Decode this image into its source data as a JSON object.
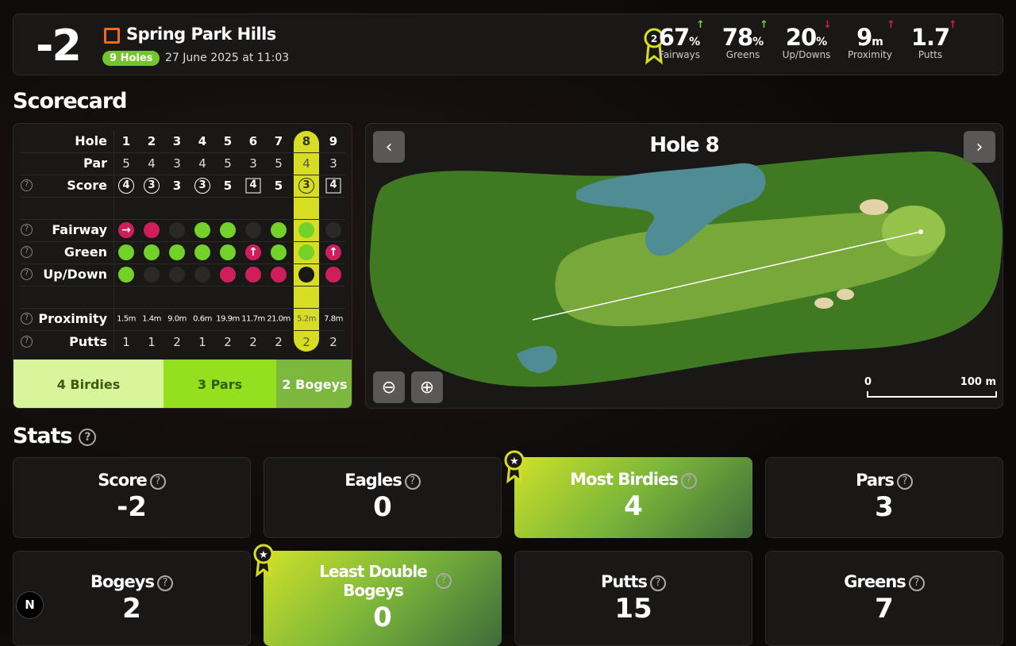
{
  "header": {
    "score": "-2",
    "course": "Spring Park Hills",
    "holes_badge": "9 Holes",
    "date": "27 June 2025 at 11:03",
    "medal_count": "2",
    "stats": [
      {
        "value": "67",
        "unit": "%",
        "label": "Fairways",
        "trend": "up"
      },
      {
        "value": "78",
        "unit": "%",
        "label": "Greens",
        "trend": "up"
      },
      {
        "value": "20",
        "unit": "%",
        "label": "Up/Downs",
        "trend": "down"
      },
      {
        "value": "9",
        "unit": "m",
        "label": "Proximity",
        "trend": "up-red"
      },
      {
        "value": "1.7",
        "unit": "",
        "label": "Putts",
        "trend": "up-red"
      }
    ]
  },
  "colors": {
    "green": "#74d12a",
    "red": "#cf1e5c",
    "none": "#2a2928",
    "highlight": "#d6dd22"
  },
  "scorecard": {
    "title": "Scorecard",
    "selected_hole": 8,
    "labels": {
      "hole": "Hole",
      "par": "Par",
      "score": "Score",
      "fairway": "Fairway",
      "green": "Green",
      "updown": "Up/Down",
      "proximity": "Proximity",
      "putts": "Putts"
    },
    "holes": [
      "1",
      "2",
      "3",
      "4",
      "5",
      "6",
      "7",
      "8",
      "9"
    ],
    "par": [
      "5",
      "4",
      "3",
      "4",
      "5",
      "3",
      "5",
      "4",
      "3"
    ],
    "score": [
      "4",
      "3",
      "3",
      "3",
      "5",
      "4",
      "5",
      "3",
      "4"
    ],
    "score_mark": [
      "circle",
      "circle",
      "none",
      "circle",
      "none",
      "square",
      "none",
      "circle",
      "square"
    ],
    "fairway": [
      "red-right",
      "red",
      "none",
      "green",
      "green",
      "none",
      "green",
      "green",
      "none"
    ],
    "green": [
      "green",
      "green",
      "green",
      "green",
      "green",
      "red-up",
      "green",
      "green",
      "red-up"
    ],
    "updown": [
      "green",
      "none",
      "none",
      "none",
      "red",
      "red",
      "red",
      "black",
      "red"
    ],
    "proximity": [
      "1.5m",
      "1.4m",
      "9.0m",
      "0.6m",
      "19.9m",
      "11.7m",
      "21.0m",
      "5.2m",
      "7.8m"
    ],
    "putts": [
      "1",
      "1",
      "2",
      "1",
      "2",
      "2",
      "2",
      "2",
      "2"
    ],
    "summary": [
      {
        "label": "4 Birdies",
        "bg": "#d8f59c",
        "fg": "#3a5a10"
      },
      {
        "label": "3 Pars",
        "bg": "#94e01e",
        "fg": "#2f5a08"
      },
      {
        "label": "2 Bogeys",
        "bg": "#7cb83e",
        "fg": "#ffffff"
      }
    ]
  },
  "map": {
    "title": "Hole 8",
    "scale_start": "0",
    "scale_end": "100 m"
  },
  "stats": {
    "title": "Stats",
    "cards": [
      {
        "title": "Score",
        "value": "-2",
        "best": false
      },
      {
        "title": "Eagles",
        "value": "0",
        "best": false
      },
      {
        "title": "Most Birdies",
        "value": "4",
        "best": true
      },
      {
        "title": "Pars",
        "value": "3",
        "best": false
      },
      {
        "title": "Bogeys",
        "value": "2",
        "best": false
      },
      {
        "title": "Least Double Bogeys",
        "value": "0",
        "best": true
      },
      {
        "title": "Putts",
        "value": "15",
        "best": false
      },
      {
        "title": "Greens",
        "value": "7",
        "best": false
      }
    ]
  },
  "nav_badge": "N"
}
